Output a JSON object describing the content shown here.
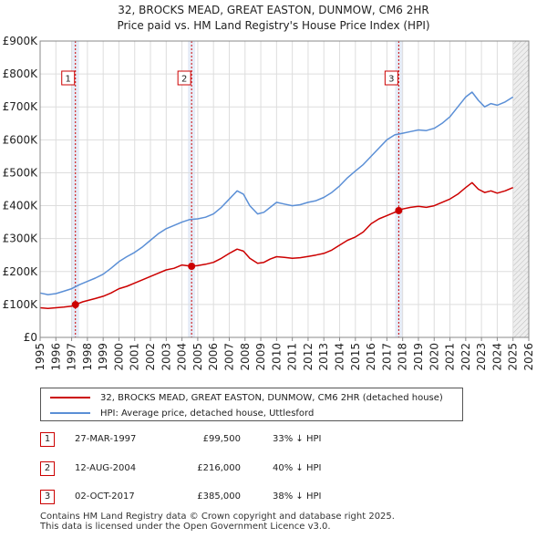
{
  "title_line1": "32, BROCKS MEAD, GREAT EASTON, DUNMOW, CM6 2HR",
  "title_line2": "Price paid vs. HM Land Registry's House Price Index (HPI)",
  "colors": {
    "property": "#cc0000",
    "hpi": "#5b8fd6",
    "shade": "#e6ecf7",
    "marker_box": "#cc0000",
    "grid": "#dddddd"
  },
  "legend": {
    "property_label": "32, BROCKS MEAD, GREAT EASTON, DUNMOW, CM6 2HR (detached house)",
    "hpi_label": "HPI: Average price, detached house, Uttlesford"
  },
  "transactions": [
    {
      "num": "1",
      "date": "27-MAR-1997",
      "price": "£99,500",
      "hpi": "33% ↓ HPI"
    },
    {
      "num": "2",
      "date": "12-AUG-2004",
      "price": "£216,000",
      "hpi": "40% ↓ HPI"
    },
    {
      "num": "3",
      "date": "02-OCT-2017",
      "price": "£385,000",
      "hpi": "38% ↓ HPI"
    }
  ],
  "footer_line1": "Contains HM Land Registry data © Crown copyright and database right 2025.",
  "footer_line2": "This data is licensed under the Open Government Licence v3.0.",
  "chart_data": {
    "type": "line",
    "title": "32, BROCKS MEAD, GREAT EASTON, DUNMOW, CM6 2HR — Price paid vs. HM Land Registry's House Price Index (HPI)",
    "xlabel": "",
    "ylabel": "",
    "xlim": [
      1995,
      2026
    ],
    "ylim": [
      0,
      900000
    ],
    "y_ticks": [
      0,
      100000,
      200000,
      300000,
      400000,
      500000,
      600000,
      700000,
      800000,
      900000
    ],
    "y_tick_labels": [
      "£0",
      "£100K",
      "£200K",
      "£300K",
      "£400K",
      "£500K",
      "£600K",
      "£700K",
      "£800K",
      "£900K"
    ],
    "x_ticks": [
      1995,
      1996,
      1997,
      1998,
      1999,
      2000,
      2001,
      2002,
      2003,
      2004,
      2005,
      2006,
      2007,
      2008,
      2009,
      2010,
      2011,
      2012,
      2013,
      2014,
      2015,
      2016,
      2017,
      2018,
      2019,
      2020,
      2021,
      2022,
      2023,
      2024,
      2025,
      2026
    ],
    "forecast_start": 2025.0,
    "series": [
      {
        "name": "32, BROCKS MEAD, GREAT EASTON, DUNMOW, CM6 2HR (detached house)",
        "x": [
          1995.0,
          1995.5,
          1996.0,
          1996.5,
          1997.0,
          1997.24,
          1997.7,
          1998.0,
          1998.5,
          1999.0,
          1999.5,
          2000.0,
          2000.5,
          2001.0,
          2001.5,
          2002.0,
          2002.5,
          2003.0,
          2003.5,
          2004.0,
          2004.61,
          2005.0,
          2005.5,
          2006.0,
          2006.5,
          2007.0,
          2007.5,
          2007.9,
          2008.3,
          2008.8,
          2009.2,
          2009.6,
          2010.0,
          2010.5,
          2011.0,
          2011.5,
          2012.0,
          2012.5,
          2013.0,
          2013.5,
          2014.0,
          2014.5,
          2015.0,
          2015.5,
          2016.0,
          2016.5,
          2017.0,
          2017.75,
          2018.0,
          2018.5,
          2019.0,
          2019.5,
          2020.0,
          2020.5,
          2021.0,
          2021.5,
          2022.0,
          2022.4,
          2022.8,
          2023.2,
          2023.6,
          2024.0,
          2024.5,
          2025.0
        ],
        "values": [
          90000,
          88000,
          90000,
          92000,
          95000,
          99500,
          108000,
          112000,
          118000,
          125000,
          135000,
          148000,
          155000,
          165000,
          175000,
          185000,
          195000,
          205000,
          210000,
          220000,
          216000,
          218000,
          222000,
          228000,
          240000,
          255000,
          268000,
          262000,
          240000,
          225000,
          228000,
          238000,
          245000,
          243000,
          240000,
          242000,
          246000,
          250000,
          255000,
          265000,
          280000,
          295000,
          305000,
          320000,
          345000,
          360000,
          370000,
          385000,
          390000,
          395000,
          398000,
          395000,
          400000,
          410000,
          420000,
          435000,
          455000,
          470000,
          450000,
          440000,
          445000,
          438000,
          445000,
          455000
        ]
      },
      {
        "name": "HPI: Average price, detached house, Uttlesford",
        "x": [
          1995.0,
          1995.5,
          1996.0,
          1996.5,
          1997.0,
          1997.5,
          1998.0,
          1998.5,
          1999.0,
          1999.5,
          2000.0,
          2000.5,
          2001.0,
          2001.5,
          2002.0,
          2002.5,
          2003.0,
          2003.5,
          2004.0,
          2004.5,
          2005.0,
          2005.5,
          2006.0,
          2006.5,
          2007.0,
          2007.5,
          2007.9,
          2008.3,
          2008.8,
          2009.2,
          2009.6,
          2010.0,
          2010.5,
          2011.0,
          2011.5,
          2012.0,
          2012.5,
          2013.0,
          2013.5,
          2014.0,
          2014.5,
          2015.0,
          2015.5,
          2016.0,
          2016.5,
          2017.0,
          2017.5,
          2018.0,
          2018.5,
          2019.0,
          2019.5,
          2020.0,
          2020.5,
          2021.0,
          2021.5,
          2022.0,
          2022.4,
          2022.8,
          2023.2,
          2023.6,
          2024.0,
          2024.5,
          2025.0
        ],
        "values": [
          135000,
          130000,
          133000,
          140000,
          148000,
          160000,
          170000,
          180000,
          192000,
          210000,
          230000,
          245000,
          258000,
          275000,
          295000,
          315000,
          330000,
          340000,
          350000,
          358000,
          360000,
          365000,
          375000,
          395000,
          420000,
          445000,
          435000,
          400000,
          375000,
          380000,
          395000,
          410000,
          405000,
          400000,
          403000,
          410000,
          415000,
          425000,
          440000,
          460000,
          485000,
          505000,
          525000,
          550000,
          575000,
          600000,
          615000,
          620000,
          625000,
          630000,
          628000,
          635000,
          650000,
          670000,
          700000,
          730000,
          745000,
          720000,
          700000,
          710000,
          705000,
          715000,
          730000
        ]
      }
    ],
    "sales": [
      {
        "label": "1",
        "x": 1997.24,
        "value": 99500
      },
      {
        "label": "2",
        "x": 2004.61,
        "value": 216000
      },
      {
        "label": "3",
        "x": 2017.75,
        "value": 385000
      }
    ]
  }
}
